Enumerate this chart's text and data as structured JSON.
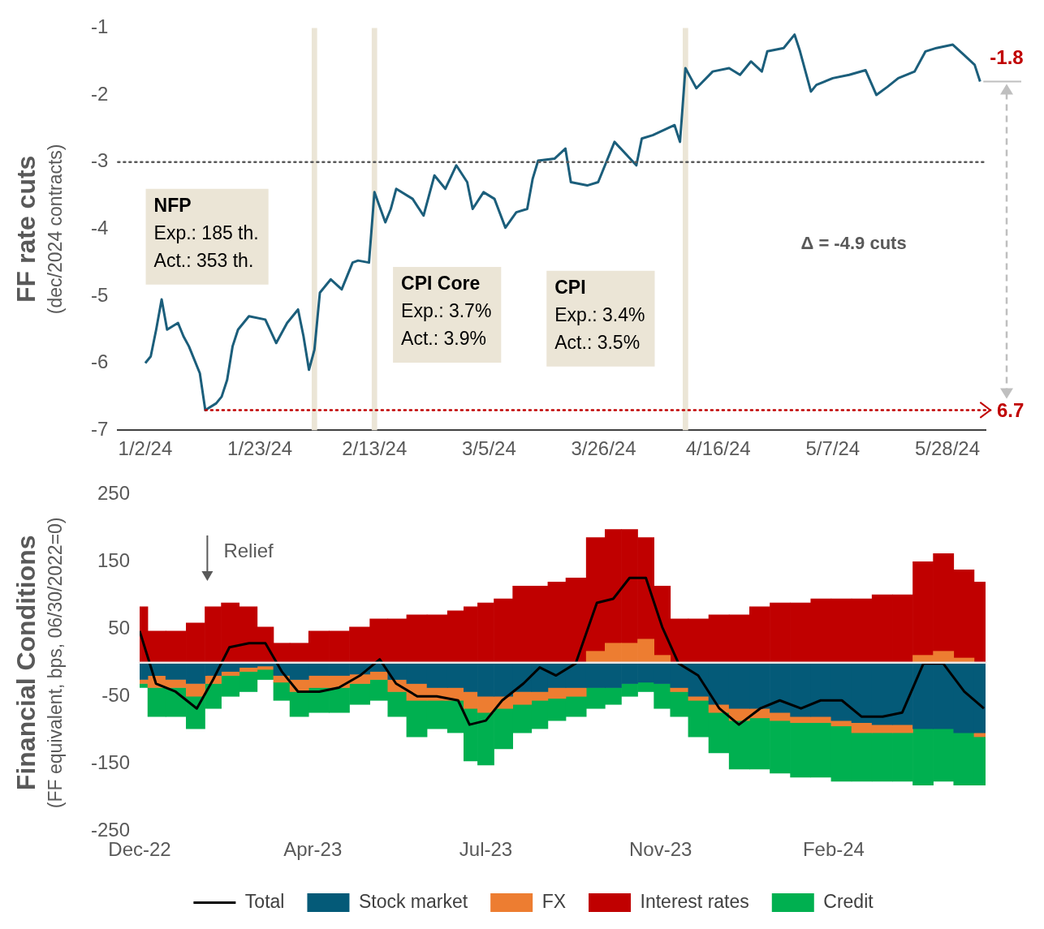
{
  "chart_data": [
    {
      "type": "line",
      "ylabel": "FF rate cuts\n(dec/2024 contracts)",
      "legend": false,
      "grid": false,
      "x": [
        "2024-01-02",
        "2024-01-03",
        "2024-01-04",
        "2024-01-05",
        "2024-01-06",
        "2024-01-08",
        "2024-01-09",
        "2024-01-10",
        "2024-01-12",
        "2024-01-13",
        "2024-01-15",
        "2024-01-16",
        "2024-01-17",
        "2024-01-18",
        "2024-01-19",
        "2024-01-21",
        "2024-01-24",
        "2024-01-26",
        "2024-01-28",
        "2024-01-30",
        "2024-01-31",
        "2024-02-01",
        "2024-02-02",
        "2024-02-03",
        "2024-02-05",
        "2024-02-07",
        "2024-02-09",
        "2024-02-10",
        "2024-02-12",
        "2024-02-13",
        "2024-02-15",
        "2024-02-16",
        "2024-02-17",
        "2024-02-20",
        "2024-02-22",
        "2024-02-24",
        "2024-02-26",
        "2024-02-28",
        "2024-03-01",
        "2024-03-02",
        "2024-03-04",
        "2024-03-06",
        "2024-03-08",
        "2024-03-10",
        "2024-03-12",
        "2024-03-13",
        "2024-03-14",
        "2024-03-17",
        "2024-03-19",
        "2024-03-20",
        "2024-03-23",
        "2024-03-25",
        "2024-03-28",
        "2024-04-01",
        "2024-04-02",
        "2024-04-04",
        "2024-04-08",
        "2024-04-09",
        "2024-04-10",
        "2024-04-11",
        "2024-04-12",
        "2024-04-15",
        "2024-04-18",
        "2024-04-20",
        "2024-04-22",
        "2024-04-24",
        "2024-04-25",
        "2024-04-28",
        "2024-04-30",
        "2024-05-01",
        "2024-05-03",
        "2024-05-04",
        "2024-05-07",
        "2024-05-10",
        "2024-05-13",
        "2024-05-15",
        "2024-05-17",
        "2024-05-19",
        "2024-05-22",
        "2024-05-24",
        "2024-05-26",
        "2024-05-29",
        "2024-05-31",
        "2024-06-02",
        "2024-06-03"
      ],
      "xlim": [
        "2023-12-28",
        "2024-06-04"
      ],
      "xticks": [
        {
          "value": "2024-01-02",
          "label": "1/2/24"
        },
        {
          "value": "2024-01-23",
          "label": "1/23/24"
        },
        {
          "value": "2024-02-13",
          "label": "2/13/24"
        },
        {
          "value": "2024-03-05",
          "label": "3/5/24"
        },
        {
          "value": "2024-03-26",
          "label": "3/26/24"
        },
        {
          "value": "2024-04-16",
          "label": "4/16/24"
        },
        {
          "value": "2024-05-07",
          "label": "5/7/24"
        },
        {
          "value": "2024-05-28",
          "label": "5/28/24"
        }
      ],
      "ylim": [
        -7,
        -1
      ],
      "yticks": [
        -7,
        -6,
        -5,
        -4,
        -3,
        -2,
        -1
      ],
      "bands": [
        {
          "axis": "x",
          "from": "2024-02-01T12:00",
          "to": "2024-02-02T12:00",
          "color": "#ebe5d6"
        },
        {
          "axis": "x",
          "from": "2024-02-12T12:00",
          "to": "2024-02-13T12:00",
          "color": "#ebe5d6"
        },
        {
          "axis": "x",
          "from": "2024-04-09T12:00",
          "to": "2024-04-10T12:00",
          "color": "#ebe5d6"
        }
      ],
      "ref_lines": [
        {
          "axis": "y",
          "value": -3,
          "color": "#595959",
          "line_style": "dotted"
        },
        {
          "axis": "y",
          "value": -6.7,
          "color": "#c00000",
          "line_style": "dotted"
        }
      ],
      "annotations": [
        "NFP\nExp.: 185 th.\nAct.: 353 th.",
        "CPI Core\nExp.: 3.7%\nAct.: 3.9%",
        "CPI\nExp.: 3.4%\nAct.: 3.5%",
        "Δ = -4.9 cuts",
        "6.7",
        {
          "text": "-1.8",
          "x": "2024-06-03",
          "y": -1.8
        }
      ],
      "series": [
        {
          "color": "#1b5e7b",
          "values": [
            -6.0,
            -5.9,
            -5.5,
            -5.05,
            -5.5,
            -5.4,
            -5.6,
            -5.75,
            -6.15,
            -6.7,
            -6.6,
            -6.5,
            -6.25,
            -5.75,
            -5.5,
            -5.3,
            -5.35,
            -5.7,
            -5.4,
            -5.2,
            -5.6,
            -6.1,
            -5.8,
            -4.95,
            -4.75,
            -4.9,
            -4.5,
            -4.47,
            -4.5,
            -3.45,
            -3.9,
            -3.7,
            -3.4,
            -3.55,
            -3.8,
            -3.2,
            -3.4,
            -3.05,
            -3.3,
            -3.7,
            -3.45,
            -3.55,
            -3.98,
            -3.75,
            -3.7,
            -3.25,
            -2.98,
            -2.95,
            -2.8,
            -3.3,
            -3.35,
            -3.3,
            -2.7,
            -3.05,
            -2.65,
            -2.6,
            -2.45,
            -2.7,
            -1.6,
            -1.75,
            -1.9,
            -1.65,
            -1.6,
            -1.7,
            -1.5,
            -1.65,
            -1.35,
            -1.3,
            -1.1,
            -1.35,
            -1.95,
            -1.85,
            -1.75,
            -1.7,
            -1.63,
            -2.0,
            -1.88,
            -1.75,
            -1.65,
            -1.35,
            -1.3,
            -1.25,
            -1.4,
            -1.55,
            -1.8
          ]
        }
      ]
    },
    {
      "type": "bar",
      "stacked": true,
      "ylabel": "Financial Conditions\n(FF equivalent, bps, 06/30/2022=0)",
      "legend": "bottom",
      "grid": false,
      "x": [
        "2022-12-30",
        "2023-01-09",
        "2023-01-21",
        "2023-02-03",
        "2023-02-13",
        "2023-02-23",
        "2023-03-07",
        "2023-03-17",
        "2023-03-27",
        "2023-04-06",
        "2023-04-19",
        "2023-05-01",
        "2023-05-14",
        "2023-05-26",
        "2023-06-05",
        "2023-06-18",
        "2023-06-30",
        "2023-07-13",
        "2023-07-20",
        "2023-07-30",
        "2023-08-09",
        "2023-08-22",
        "2023-09-01",
        "2023-09-11",
        "2023-09-23",
        "2023-10-06",
        "2023-10-16",
        "2023-10-26",
        "2023-11-05",
        "2023-11-15",
        "2023-11-25",
        "2023-12-07",
        "2023-12-20",
        "2024-01-01",
        "2024-01-14",
        "2024-01-26",
        "2024-02-08",
        "2024-02-20",
        "2024-03-04",
        "2024-03-16",
        "2024-03-29",
        "2024-04-10",
        "2024-04-23",
        "2024-05-05",
        "2024-05-18",
        "2024-05-30"
      ],
      "xlim": [
        "2022-12-30",
        "2024-05-31"
      ],
      "xticks": [
        {
          "value": "2022-12-30",
          "label": "Dec-22"
        },
        {
          "value": "2023-04-15",
          "label": "Apr-23"
        },
        {
          "value": "2023-07-30",
          "label": "Jul-23"
        },
        {
          "value": "2023-11-14",
          "label": "Nov-23"
        },
        {
          "value": "2024-02-28",
          "label": "Feb-24"
        }
      ],
      "ylim": [
        -250,
        250
      ],
      "yticks": [
        -250,
        -150,
        -50,
        50,
        150,
        250
      ],
      "annotations": [
        "Relief"
      ],
      "ref_lines": [
        {
          "axis": "y",
          "value": 0,
          "color": "#e6e6e6"
        }
      ],
      "series": [
        {
          "name": "Stock market",
          "color": "#045a78",
          "values": [
            -25,
            -19,
            -25,
            -31,
            -19,
            -13,
            -7,
            -5,
            -19,
            -25,
            -19,
            -19,
            -17,
            -13,
            -25,
            -31,
            -37,
            -37,
            -43,
            -50,
            -50,
            -43,
            -43,
            -37,
            -37,
            -37,
            -37,
            -31,
            -29,
            -31,
            -37,
            -50,
            -62,
            -68,
            -68,
            -74,
            -80,
            -80,
            -86,
            -89,
            -92,
            -92,
            -98,
            -98,
            -104,
            -104
          ]
        },
        {
          "name": "FX",
          "color": "#ed7d31",
          "values": [
            -6,
            -18,
            -12,
            -19,
            -12,
            -6,
            -6,
            -5,
            -10,
            -18,
            -18,
            -18,
            -14,
            -12,
            -18,
            -25,
            -19,
            -19,
            -25,
            -24,
            -18,
            -19,
            -13,
            -16,
            -13,
            17,
            29,
            29,
            35,
            11,
            -6,
            -6,
            -12,
            -18,
            -14,
            -12,
            -9,
            -9,
            -8,
            -15,
            -12,
            -12,
            11,
            17,
            7,
            -6
          ]
        },
        {
          "name": "Interest rates",
          "color": "#c00000",
          "values": [
            83,
            47,
            47,
            59,
            83,
            89,
            83,
            53,
            29,
            29,
            47,
            47,
            53,
            65,
            65,
            71,
            71,
            77,
            83,
            89,
            95,
            114,
            114,
            120,
            126,
            169,
            169,
            169,
            151,
            103,
            65,
            65,
            71,
            71,
            83,
            89,
            89,
            95,
            95,
            95,
            101,
            101,
            139,
            145,
            131,
            120
          ]
        },
        {
          "name": "Credit",
          "color": "#00b050",
          "values": [
            -6,
            -43,
            -43,
            -48,
            -37,
            -31,
            -30,
            -15,
            -27,
            -37,
            -37,
            -37,
            -31,
            -31,
            -37,
            -54,
            -42,
            -48,
            -78,
            -78,
            -60,
            -42,
            -42,
            -33,
            -30,
            -31,
            -25,
            -19,
            -14,
            -37,
            -37,
            -54,
            -60,
            -72,
            -76,
            -78,
            -81,
            -81,
            -82,
            -72,
            -72,
            -72,
            -84,
            -78,
            -78,
            -72
          ]
        },
        {
          "name": "Total",
          "type": "line",
          "color": "#000000",
          "values": [
            47,
            -31,
            -43,
            -68,
            -25,
            23,
            29,
            29,
            -13,
            -43,
            -43,
            -37,
            -19,
            5,
            -31,
            -50,
            -50,
            -56,
            -92,
            -86,
            -56,
            -31,
            -7,
            -19,
            -1,
            89,
            95,
            126,
            126,
            53,
            -1,
            -19,
            -68,
            -92,
            -68,
            -56,
            -68,
            -56,
            -56,
            -80,
            -80,
            -74,
            -1,
            -1,
            -43,
            -68
          ]
        }
      ]
    }
  ]
}
